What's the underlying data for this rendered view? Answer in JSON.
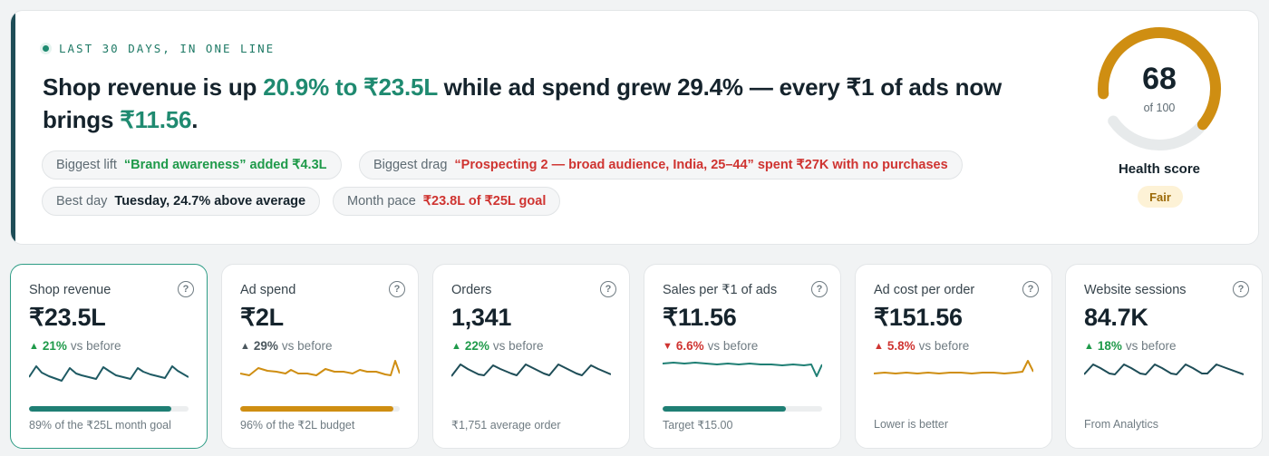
{
  "hero": {
    "eyebrow": "LAST 30 DAYS, IN ONE LINE",
    "headline": {
      "p1": "Shop revenue is up ",
      "h1": "20.9% to ₹23.5L",
      "p2": " while ad spend grew 29.4% — every ₹1 of ads now brings ",
      "h2": "₹11.56",
      "p3": "."
    },
    "chips": [
      {
        "label": "Biggest lift",
        "value": "“Brand awareness” added ₹4.3L",
        "tone": "green"
      },
      {
        "label": "Biggest drag",
        "value": "“Prospecting 2 — broad audience, India, 25–44” spent ₹27K with no purchases",
        "tone": "red"
      },
      {
        "label": "Best day",
        "value": "Tuesday, 24.7% above average",
        "tone": "dark"
      },
      {
        "label": "Month pace",
        "value": "₹23.8L of ₹25L goal",
        "tone": "red"
      }
    ]
  },
  "health": {
    "score": "68",
    "score_value": 68,
    "out_of": "of 100",
    "label": "Health score",
    "badge": "Fair",
    "colors": {
      "arc": "#cf8e12",
      "track": "#e7eaeb"
    }
  },
  "cards": [
    {
      "title": "Shop revenue",
      "value": "₹23.5L",
      "arrow": "▲",
      "pct": "21%",
      "suffix": "vs before",
      "delta_color": "up-green",
      "footer": "89% of the ₹25L month goal",
      "progress": 0.89,
      "bar_color": "#1f7f74",
      "spark_color": "#1e5a63",
      "selected": true
    },
    {
      "title": "Ad spend",
      "value": "₹2L",
      "arrow": "▲",
      "pct": "29%",
      "suffix": "vs before",
      "delta_color": "up-grey",
      "footer": "96% of the ₹2L budget",
      "progress": 0.96,
      "bar_color": "#cf8e12",
      "spark_color": "#cf8e12",
      "selected": false
    },
    {
      "title": "Orders",
      "value": "1,341",
      "arrow": "▲",
      "pct": "22%",
      "suffix": "vs before",
      "delta_color": "up-green",
      "footer": "₹1,751 average order",
      "progress": null,
      "bar_color": "",
      "spark_color": "#1e4d57",
      "selected": false
    },
    {
      "title": "Sales per ₹1 of ads",
      "value": "₹11.56",
      "arrow": "▼",
      "pct": "6.6%",
      "suffix": "vs before",
      "delta_color": "down-red",
      "footer": "Target ₹15.00",
      "progress": 0.77,
      "bar_color": "#1f7f74",
      "spark_color": "#1f7f74",
      "selected": false
    },
    {
      "title": "Ad cost per order",
      "value": "₹151.56",
      "arrow": "▲",
      "pct": "5.8%",
      "suffix": "vs before",
      "delta_color": "up-red",
      "footer": "Lower is better",
      "progress": null,
      "bar_color": "",
      "spark_color": "#cf8e12",
      "selected": false
    },
    {
      "title": "Website sessions",
      "value": "84.7K",
      "arrow": "▲",
      "pct": "18%",
      "suffix": "vs before",
      "delta_color": "up-green",
      "footer": "From Analytics",
      "progress": null,
      "bar_color": "",
      "spark_color": "#1e4d57",
      "selected": false
    }
  ],
  "help_glyph": "?"
}
